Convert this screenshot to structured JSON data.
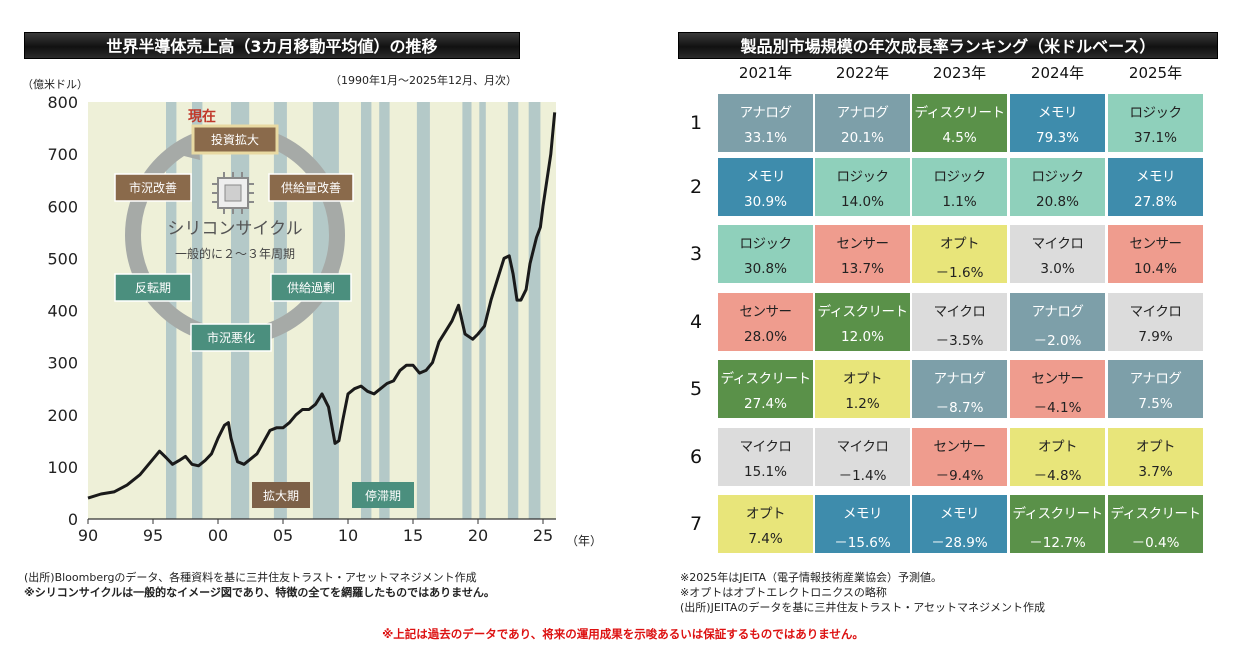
{
  "left_title": "世界半導体売上高（3カ月移動平均値）の推移",
  "right_title": "製品別市場規模の年次成長率ランキング（米ドルベース）",
  "left_unit": "（億米ドル）",
  "left_period": "（1990年1月～2025年12月、月次）",
  "year_suffix": "（年）",
  "cycle": {
    "title": "シリコンサイクル",
    "subtitle": "一般的に２～３年周期",
    "now": "現在",
    "stages": [
      "投資拡大",
      "供給量改善",
      "供給過剰",
      "市況悪化",
      "反転期",
      "市況改善"
    ],
    "phase_labels": [
      "拡大期",
      "停滞期"
    ]
  },
  "chart_data": {
    "type": "line",
    "ylabel": "億米ドル",
    "ylim": [
      0,
      800
    ],
    "xlim": [
      1990,
      2026
    ],
    "yticks": [
      0,
      100,
      200,
      300,
      400,
      500,
      600,
      700,
      800
    ],
    "xticks": [
      {
        "v": 1990,
        "label": "90"
      },
      {
        "v": 1995,
        "label": "95"
      },
      {
        "v": 2000,
        "label": "00"
      },
      {
        "v": 2005,
        "label": "05"
      },
      {
        "v": 2010,
        "label": "10"
      },
      {
        "v": 2015,
        "label": "15"
      },
      {
        "v": 2020,
        "label": "20"
      },
      {
        "v": 2025,
        "label": "25"
      }
    ],
    "stagnation_periods": [
      [
        1996.0,
        1996.8
      ],
      [
        1998.0,
        1998.8
      ],
      [
        2001.0,
        2002.4
      ],
      [
        2004.3,
        2005.3
      ],
      [
        2007.3,
        2009.3
      ],
      [
        2011.0,
        2011.8
      ],
      [
        2012.4,
        2013.2
      ],
      [
        2015.3,
        2016.3
      ],
      [
        2018.8,
        2019.5
      ],
      [
        2020.1,
        2020.6
      ],
      [
        2022.3,
        2023.1
      ],
      [
        2023.9,
        2024.8
      ]
    ],
    "series": [
      {
        "x": [
          1990,
          1991,
          1992,
          1993,
          1994,
          1995,
          1995.5,
          1996,
          1996.5,
          1997,
          1997.5,
          1998,
          1998.5,
          1999,
          1999.5,
          2000,
          2000.5,
          2000.8,
          2001,
          2001.5,
          2002,
          2002.5,
          2003,
          2004,
          2004.5,
          2005,
          2005.5,
          2006,
          2006.5,
          2007,
          2007.5,
          2008,
          2008.5,
          2009,
          2009.3,
          2009.6,
          2010,
          2010.5,
          2011,
          2011.5,
          2012,
          2012.5,
          2013,
          2013.5,
          2014,
          2014.5,
          2015,
          2015.5,
          2016,
          2016.5,
          2017,
          2017.5,
          2018,
          2018.5,
          2019,
          2019.3,
          2019.6,
          2020,
          2020.5,
          2021,
          2021.5,
          2022,
          2022.4,
          2022.7,
          2023,
          2023.3,
          2023.7,
          2024,
          2024.5,
          2024.8,
          2025,
          2025.3,
          2025.6,
          2025.9
        ],
        "y": [
          40,
          48,
          52,
          65,
          85,
          115,
          130,
          118,
          105,
          112,
          120,
          105,
          102,
          112,
          125,
          155,
          180,
          185,
          155,
          110,
          105,
          115,
          125,
          170,
          175,
          175,
          185,
          200,
          210,
          210,
          220,
          240,
          215,
          145,
          150,
          190,
          240,
          250,
          255,
          245,
          240,
          250,
          260,
          265,
          285,
          295,
          295,
          280,
          285,
          300,
          340,
          360,
          380,
          410,
          355,
          350,
          345,
          355,
          370,
          420,
          460,
          500,
          505,
          470,
          420,
          420,
          440,
          490,
          540,
          560,
          600,
          650,
          700,
          780
        ]
      }
    ]
  },
  "rank_years": [
    "2021年",
    "2022年",
    "2023年",
    "2024年",
    "2025年"
  ],
  "ranks": [
    "1",
    "2",
    "3",
    "4",
    "5",
    "6",
    "7"
  ],
  "colors": {
    "アナログ": "#7d9fa9",
    "メモリ": "#3e8cac",
    "ロジック": "#8fd0bb",
    "センサー": "#ef9c8e",
    "オプト": "#e8e57a",
    "マイクロ": "#dcdcdc",
    "ディスクリート": "#5a9149"
  },
  "grid": [
    [
      {
        "name": "アナログ",
        "value": "33.1%"
      },
      {
        "name": "アナログ",
        "value": "20.1%"
      },
      {
        "name": "ディスクリート",
        "value": "4.5%"
      },
      {
        "name": "メモリ",
        "value": "79.3%"
      },
      {
        "name": "ロジック",
        "value": "37.1%"
      }
    ],
    [
      {
        "name": "メモリ",
        "value": "30.9%"
      },
      {
        "name": "ロジック",
        "value": "14.0%"
      },
      {
        "name": "ロジック",
        "value": "1.1%"
      },
      {
        "name": "ロジック",
        "value": "20.8%"
      },
      {
        "name": "メモリ",
        "value": "27.8%"
      }
    ],
    [
      {
        "name": "ロジック",
        "value": "30.8%"
      },
      {
        "name": "センサー",
        "value": "13.7%"
      },
      {
        "name": "オプト",
        "value": "－1.6%"
      },
      {
        "name": "マイクロ",
        "value": "3.0%"
      },
      {
        "name": "センサー",
        "value": "10.4%"
      }
    ],
    [
      {
        "name": "センサー",
        "value": "28.0%"
      },
      {
        "name": "ディスクリート",
        "value": "12.0%"
      },
      {
        "name": "マイクロ",
        "value": "－3.5%"
      },
      {
        "name": "アナログ",
        "value": "－2.0%"
      },
      {
        "name": "マイクロ",
        "value": "7.9%"
      }
    ],
    [
      {
        "name": "ディスクリート",
        "value": "27.4%"
      },
      {
        "name": "オプト",
        "value": "1.2%"
      },
      {
        "name": "アナログ",
        "value": "－8.7%"
      },
      {
        "name": "センサー",
        "value": "－4.1%"
      },
      {
        "name": "アナログ",
        "value": "7.5%"
      }
    ],
    [
      {
        "name": "マイクロ",
        "value": "15.1%"
      },
      {
        "name": "マイクロ",
        "value": "－1.4%"
      },
      {
        "name": "センサー",
        "value": "－9.4%"
      },
      {
        "name": "オプト",
        "value": "－4.8%"
      },
      {
        "name": "オプト",
        "value": "3.7%"
      }
    ],
    [
      {
        "name": "オプト",
        "value": "7.4%"
      },
      {
        "name": "メモリ",
        "value": "－15.6%"
      },
      {
        "name": "メモリ",
        "value": "－28.9%"
      },
      {
        "name": "ディスクリート",
        "value": "－12.7%"
      },
      {
        "name": "ディスクリート",
        "value": "－0.4%"
      }
    ]
  ],
  "notes_left": [
    "(出所)Bloombergのデータ、各種資料を基に三井住友トラスト・アセットマネジメント作成",
    "※シリコンサイクルは一般的なイメージ図であり、特徴の全てを網羅したものではありません。"
  ],
  "notes_right": [
    "※2025年はJEITA（電子情報技術産業協会）予測値。",
    "※オプトはオプトエレクトロニクスの略称",
    "(出所)JEITAのデータを基に三井住友トラスト・アセットマネジメント作成"
  ],
  "disclaimer": "※上記は過去のデータであり、将来の運用成果を示唆あるいは保証するものではありません。"
}
